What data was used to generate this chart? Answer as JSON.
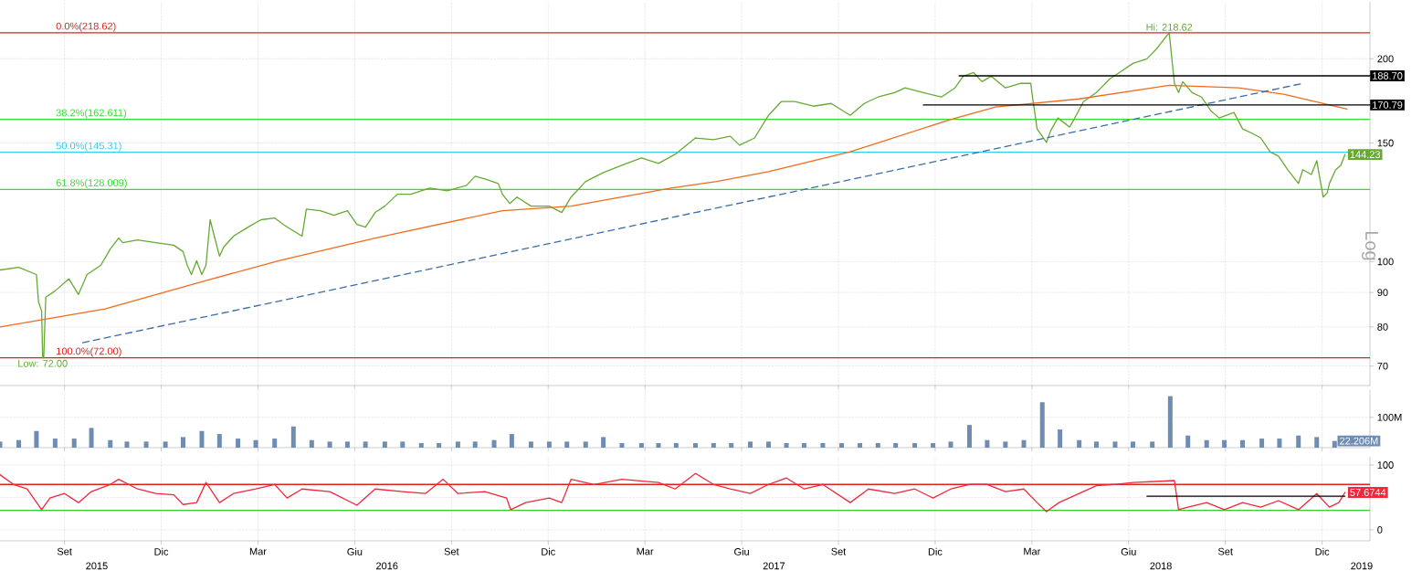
{
  "chart_data": [
    {
      "type": "line",
      "log": true,
      "grid": true,
      "tick_labels": "y",
      "xlim": [
        "2015-07-01",
        "2019-01-16"
      ],
      "ylim": [
        65.5,
        243
      ],
      "xticks": [
        {
          "value": "2015-09",
          "label": null
        },
        {
          "value": "2015-12",
          "label": null
        },
        {
          "value": "2016-03",
          "label": null
        },
        {
          "value": "2016-06",
          "label": null
        },
        {
          "value": "2016-09",
          "label": null
        },
        {
          "value": "2016-12",
          "label": null
        },
        {
          "value": "2017-03",
          "label": null
        },
        {
          "value": "2017-06",
          "label": null
        },
        {
          "value": "2017-09",
          "label": null
        },
        {
          "value": "2017-12",
          "label": null
        },
        {
          "value": "2018-03",
          "label": null
        },
        {
          "value": "2018-06",
          "label": null
        },
        {
          "value": "2018-09",
          "label": null
        },
        {
          "value": "2018-12",
          "label": null
        }
      ],
      "yticks": [
        70,
        80,
        90,
        100,
        150,
        200
      ],
      "series": [
        {
          "color": "#66aa33",
          "x": [
            "2015-07-01",
            "2015-07-19",
            "2015-08-05",
            "2015-08-07",
            "2015-08-10",
            "2015-08-11",
            "2015-08-12",
            "2015-08-14",
            "2015-08-23",
            "2015-09-05",
            "2015-09-14",
            "2015-09-22",
            "2015-10-05",
            "2015-10-14",
            "2015-10-22",
            "2015-10-26",
            "2015-11-09",
            "2015-11-26",
            "2015-12-13",
            "2015-12-22",
            "2015-12-26",
            "2015-12-30",
            "2016-01-04",
            "2016-01-09",
            "2016-01-13",
            "2016-01-17",
            "2016-01-21",
            "2016-01-26",
            "2016-01-30",
            "2016-02-08",
            "2016-02-21",
            "2016-03-04",
            "2016-03-17",
            "2016-03-25",
            "2016-04-04",
            "2016-04-12",
            "2016-04-16",
            "2016-04-29",
            "2016-05-12",
            "2016-05-25",
            "2016-06-03",
            "2016-06-11",
            "2016-06-20",
            "2016-06-29",
            "2016-07-11",
            "2016-07-24",
            "2016-08-11",
            "2016-08-28",
            "2016-09-15",
            "2016-09-23",
            "2016-10-02",
            "2016-10-15",
            "2016-10-19",
            "2016-10-26",
            "2016-11-02",
            "2016-11-15",
            "2016-12-02",
            "2016-12-14",
            "2016-12-23",
            "2017-01-06",
            "2017-01-23",
            "2017-02-09",
            "2017-02-26",
            "2017-03-14",
            "2017-03-30",
            "2017-04-18",
            "2017-05-05",
            "2017-05-21",
            "2017-05-30",
            "2017-06-13",
            "2017-06-26",
            "2017-07-08",
            "2017-07-21",
            "2017-08-08",
            "2017-08-25",
            "2017-09-12",
            "2017-09-25",
            "2017-10-08",
            "2017-10-24",
            "2017-11-03",
            "2017-11-20",
            "2017-12-07",
            "2017-12-20",
            "2017-12-28",
            "2018-01-07",
            "2018-01-15",
            "2018-01-24",
            "2018-02-06",
            "2018-02-19",
            "2018-02-28",
            "2018-03-01",
            "2018-03-06",
            "2018-03-15",
            "2018-03-19",
            "2018-03-26",
            "2018-04-06",
            "2018-04-10",
            "2018-04-19",
            "2018-05-01",
            "2018-05-14",
            "2018-05-23",
            "2018-06-05",
            "2018-06-18",
            "2018-06-27",
            "2018-07-05",
            "2018-07-09",
            "2018-07-14",
            "2018-07-18",
            "2018-07-22",
            "2018-07-31",
            "2018-08-09",
            "2018-08-18",
            "2018-08-26",
            "2018-09-09",
            "2018-09-17",
            "2018-09-26",
            "2018-10-04",
            "2018-10-13",
            "2018-10-21",
            "2018-10-30",
            "2018-11-09",
            "2018-11-13",
            "2018-11-21",
            "2018-11-26",
            "2018-12-02",
            "2018-12-06",
            "2018-12-08",
            "2018-12-14",
            "2018-12-19",
            "2018-12-23"
          ],
          "values": [
            97.2,
            98.1,
            95.7,
            87.2,
            84.5,
            72.0,
            72.0,
            88.6,
            90.5,
            94.3,
            89.4,
            95.7,
            98.8,
            104.4,
            108.4,
            106.7,
            107.7,
            106.7,
            105.8,
            103.5,
            98.8,
            95.7,
            100.3,
            95.7,
            98.8,
            115.4,
            109.1,
            101.9,
            105.1,
            109.1,
            112.5,
            115.4,
            116.1,
            113.6,
            111.1,
            109.1,
            119.7,
            119.0,
            117.2,
            119.0,
            113.6,
            112.5,
            118.3,
            120.9,
            125.9,
            125.9,
            128.6,
            127.4,
            129.8,
            133.9,
            132.7,
            130.6,
            125.9,
            122.0,
            124.7,
            120.9,
            120.9,
            118.3,
            124.7,
            131.5,
            135.6,
            139.0,
            142.5,
            139.9,
            144.3,
            152.6,
            151.7,
            153.5,
            148.9,
            152.6,
            164.9,
            172.8,
            172.8,
            170.1,
            171.7,
            164.9,
            171.7,
            175.5,
            178.2,
            181.1,
            178.2,
            175.5,
            181.1,
            188.5,
            190.8,
            185.0,
            188.5,
            181.1,
            183.9,
            183.9,
            178.2,
            157.4,
            150.3,
            156.4,
            163.4,
            158.4,
            162.4,
            172.8,
            178.2,
            186.8,
            190.8,
            196.9,
            200.0,
            206.9,
            214.8,
            218.62,
            183.9,
            178.2,
            185.0,
            178.2,
            175.5,
            167.5,
            163.4,
            166.5,
            157.4,
            155.0,
            152.6,
            145.6,
            143.4,
            136.9,
            130.6,
            136.9,
            134.7,
            141.2,
            124.7,
            126.6,
            130.6,
            136.9,
            139.0,
            144.23
          ]
        },
        {
          "color": "#f26b1d",
          "x": [
            "2015-07-01",
            "2015-10-09",
            "2016-01-09",
            "2016-03-21",
            "2016-06-20",
            "2016-10-19",
            "2016-12-23",
            "2017-03-26",
            "2017-05-08",
            "2017-06-26",
            "2017-09-12",
            "2017-12-15",
            "2018-01-28",
            "2018-04-15",
            "2018-07-09",
            "2018-09-13",
            "2018-10-26",
            "2018-12-25"
          ],
          "values": [
            80.0,
            85.1,
            93.4,
            100.3,
            108.4,
            119.0,
            120.9,
            128.6,
            131.5,
            136.0,
            145.6,
            162.4,
            169.6,
            174.4,
            182.7,
            181.1,
            177.2,
            168.5
          ]
        },
        {
          "color": "#3a6ea5",
          "line_style": "dashed",
          "x": [
            "2015-09-18",
            "2018-11-13"
          ],
          "values": [
            75.8,
            183.9
          ]
        },
        {
          "name": "188.70",
          "color": "#000000",
          "x": [
            "2017-12-24",
            "2019-01-16"
          ],
          "values": [
            188.7,
            188.7
          ]
        },
        {
          "name": "170.79",
          "color": "#000000",
          "x": [
            "2017-11-20",
            "2019-01-16"
          ],
          "values": [
            170.79,
            170.79
          ]
        }
      ],
      "ref_lines": [
        {
          "axis": "y",
          "value": 218.62,
          "label": "0.0%(218.62)",
          "color": "#e02020"
        },
        {
          "axis": "y",
          "value": 162.611,
          "label": "38.2%(162.611)",
          "color": "#33dd33"
        },
        {
          "axis": "y",
          "value": 145.31,
          "label": "50.0%(145.31)",
          "color": "#33ccee"
        },
        {
          "axis": "y",
          "value": 128.009,
          "label": "61.8%(128.009)",
          "color": "#33dd33"
        },
        {
          "axis": "y",
          "value": 72.0,
          "label": "100.0%(72.00)",
          "color": "#e02020"
        }
      ],
      "annotations": [
        {
          "text": "Hi: 218.62",
          "x": "2018-07-09",
          "y": 218.62
        },
        {
          "text": "Low: 72.00",
          "x": "2015-08-11",
          "y": 72.0
        },
        {
          "text": "144.23",
          "x": "2018-12-23",
          "y": 144.23
        },
        "Log"
      ]
    },
    {
      "type": "bar",
      "grid": true,
      "tick_labels": "y",
      "color": "#6f8db3",
      "xlim": [
        "2015-07-01",
        "2019-01-16"
      ],
      "ylim": [
        0,
        190
      ],
      "xticks": [
        {
          "value": "2015-09",
          "label": null
        },
        {
          "value": "2015-12",
          "label": null
        },
        {
          "value": "2016-03",
          "label": null
        },
        {
          "value": "2016-06",
          "label": null
        },
        {
          "value": "2016-09",
          "label": null
        },
        {
          "value": "2016-12",
          "label": null
        },
        {
          "value": "2017-03",
          "label": null
        },
        {
          "value": "2017-06",
          "label": null
        },
        {
          "value": "2017-09",
          "label": null
        },
        {
          "value": "2017-12",
          "label": null
        },
        {
          "value": "2018-03",
          "label": null
        },
        {
          "value": "2018-06",
          "label": null
        },
        {
          "value": "2018-09",
          "label": null
        },
        {
          "value": "2018-12",
          "label": null
        }
      ],
      "yticks": [
        {
          "value": 100,
          "label": "100M"
        }
      ],
      "x": [
        "2015-07-01",
        "2015-07-19",
        "2015-08-05",
        "2015-08-23",
        "2015-09-10",
        "2015-09-26",
        "2015-10-14",
        "2015-10-30",
        "2015-11-17",
        "2015-12-05",
        "2015-12-22",
        "2016-01-09",
        "2016-01-26",
        "2016-02-12",
        "2016-02-28",
        "2016-03-17",
        "2016-04-04",
        "2016-04-21",
        "2016-05-08",
        "2016-05-25",
        "2016-06-11",
        "2016-06-29",
        "2016-07-16",
        "2016-08-03",
        "2016-08-20",
        "2016-09-07",
        "2016-09-23",
        "2016-10-11",
        "2016-10-28",
        "2016-11-15",
        "2016-12-02",
        "2016-12-19",
        "2017-01-06",
        "2017-01-23",
        "2017-02-09",
        "2017-02-26",
        "2017-03-14",
        "2017-03-31",
        "2017-04-18",
        "2017-05-05",
        "2017-05-22",
        "2017-06-09",
        "2017-06-26",
        "2017-07-13",
        "2017-07-30",
        "2017-08-17",
        "2017-09-04",
        "2017-09-21",
        "2017-10-08",
        "2017-10-25",
        "2017-11-12",
        "2017-11-29",
        "2017-12-16",
        "2018-01-03",
        "2018-01-20",
        "2018-02-06",
        "2018-02-22",
        "2018-03-11",
        "2018-03-28",
        "2018-04-15",
        "2018-05-01",
        "2018-05-19",
        "2018-06-05",
        "2018-06-23",
        "2018-07-10",
        "2018-07-27",
        "2018-08-14",
        "2018-08-31",
        "2018-09-17",
        "2018-10-05",
        "2018-10-22",
        "2018-11-09",
        "2018-11-26",
        "2018-12-13"
      ],
      "values": [
        20,
        25,
        55,
        30,
        30,
        65,
        25,
        20,
        20,
        20,
        35,
        55,
        45,
        30,
        25,
        30,
        70,
        25,
        20,
        20,
        20,
        20,
        20,
        15,
        15,
        20,
        20,
        25,
        45,
        20,
        20,
        20,
        20,
        35,
        15,
        15,
        15,
        15,
        15,
        15,
        15,
        20,
        20,
        15,
        15,
        15,
        15,
        15,
        15,
        15,
        15,
        15,
        20,
        75,
        25,
        20,
        25,
        150,
        60,
        25,
        20,
        20,
        20,
        20,
        170,
        40,
        25,
        25,
        25,
        30,
        30,
        40,
        35,
        22.206
      ],
      "annotations": [
        {
          "text": "22.206M",
          "x": "2018-12-13",
          "y": 22.206
        }
      ]
    },
    {
      "type": "line",
      "grid": true,
      "xlim": [
        "2015-07-01",
        "2019-01-16"
      ],
      "ylim": [
        -17,
        112.7
      ],
      "xticks": [
        {
          "value": "2015-09",
          "label": "Set"
        },
        {
          "value": "2015-12",
          "label": "Dic"
        },
        {
          "value": "2016-03",
          "label": "Mar"
        },
        {
          "value": "2016-06",
          "label": "Giu"
        },
        {
          "value": "2016-09",
          "label": "Set"
        },
        {
          "value": "2016-12",
          "label": "Dic"
        },
        {
          "value": "2017-03",
          "label": "Mar"
        },
        {
          "value": "2017-06",
          "label": "Giu"
        },
        {
          "value": "2017-09",
          "label": "Set"
        },
        {
          "value": "2017-12",
          "label": "Dic"
        },
        {
          "value": "2018-03",
          "label": "Mar"
        },
        {
          "value": "2018-06",
          "label": "Giu"
        },
        {
          "value": "2018-09",
          "label": "Set"
        },
        {
          "value": "2018-12",
          "label": "Dic"
        }
      ],
      "x2lim": [
        "2015-07-01",
        "2019-01-16"
      ],
      "x2ticks": [
        {
          "value": "2015-10-01",
          "label": "2015"
        },
        {
          "value": "2016-07-01",
          "label": "2016"
        },
        {
          "value": "2017-07-01",
          "label": "2017"
        },
        {
          "value": "2018-07-01",
          "label": "2018"
        },
        {
          "value": "2019-01-08",
          "label": "2019"
        }
      ],
      "yticks": [
        0,
        {
          "value": 50,
          "label": null
        },
        100
      ],
      "series": [
        {
          "color": "#f0283c",
          "x": [
            "2015-07-01",
            "2015-07-14",
            "2015-07-27",
            "2015-08-10",
            "2015-08-18",
            "2015-09-01",
            "2015-09-14",
            "2015-09-26",
            "2015-10-14",
            "2015-10-22",
            "2015-11-09",
            "2015-11-26",
            "2015-12-13",
            "2015-12-22",
            "2016-01-04",
            "2016-01-13",
            "2016-01-26",
            "2016-02-08",
            "2016-02-28",
            "2016-03-17",
            "2016-03-29",
            "2016-04-12",
            "2016-05-08",
            "2016-06-03",
            "2016-06-20",
            "2016-07-16",
            "2016-08-07",
            "2016-08-24",
            "2016-09-07",
            "2016-10-02",
            "2016-10-23",
            "2016-10-27",
            "2016-11-10",
            "2016-12-02",
            "2016-12-14",
            "2016-12-23",
            "2017-01-14",
            "2017-02-09",
            "2017-03-14",
            "2017-03-30",
            "2017-04-18",
            "2017-05-05",
            "2017-05-21",
            "2017-06-09",
            "2017-06-26",
            "2017-07-13",
            "2017-07-30",
            "2017-08-17",
            "2017-09-12",
            "2017-09-29",
            "2017-10-24",
            "2017-11-12",
            "2017-11-29",
            "2017-12-16",
            "2018-01-03",
            "2018-01-20",
            "2018-02-06",
            "2018-02-22",
            "2018-03-06",
            "2018-03-15",
            "2018-03-27",
            "2018-04-15",
            "2018-05-01",
            "2018-05-18",
            "2018-06-05",
            "2018-07-01",
            "2018-07-14",
            "2018-07-18",
            "2018-07-27",
            "2018-08-14",
            "2018-08-31",
            "2018-09-17",
            "2018-10-04",
            "2018-10-21",
            "2018-11-09",
            "2018-11-26",
            "2018-12-08",
            "2018-12-17",
            "2018-12-23"
          ],
          "values": [
            85,
            70,
            63,
            31,
            49,
            56,
            42,
            59,
            70,
            78,
            63,
            56,
            54,
            39,
            42,
            73,
            42,
            56,
            63,
            70,
            49,
            63,
            59,
            38,
            63,
            59,
            56,
            78,
            56,
            59,
            49,
            31,
            42,
            49,
            42,
            78,
            70,
            78,
            73,
            63,
            87,
            70,
            63,
            56,
            70,
            80,
            63,
            70,
            42,
            63,
            56,
            63,
            49,
            63,
            70,
            70,
            59,
            63,
            42,
            28,
            42,
            56,
            68,
            70,
            73,
            75,
            76,
            31,
            35,
            42,
            31,
            42,
            35,
            45,
            31,
            56,
            35,
            42,
            57.6744
          ]
        },
        {
          "color": "#000000",
          "x": [
            "2018-06-18",
            "2018-12-23"
          ],
          "values": [
            52,
            52
          ]
        }
      ],
      "ref_lines": [
        {
          "axis": "y",
          "value": 70,
          "color": "#e02020"
        },
        {
          "axis": "y",
          "value": 30,
          "color": "#33cc33"
        }
      ],
      "annotations": [
        {
          "text": "57.6744",
          "x": "2018-12-23",
          "y": 57.6744
        }
      ]
    }
  ]
}
